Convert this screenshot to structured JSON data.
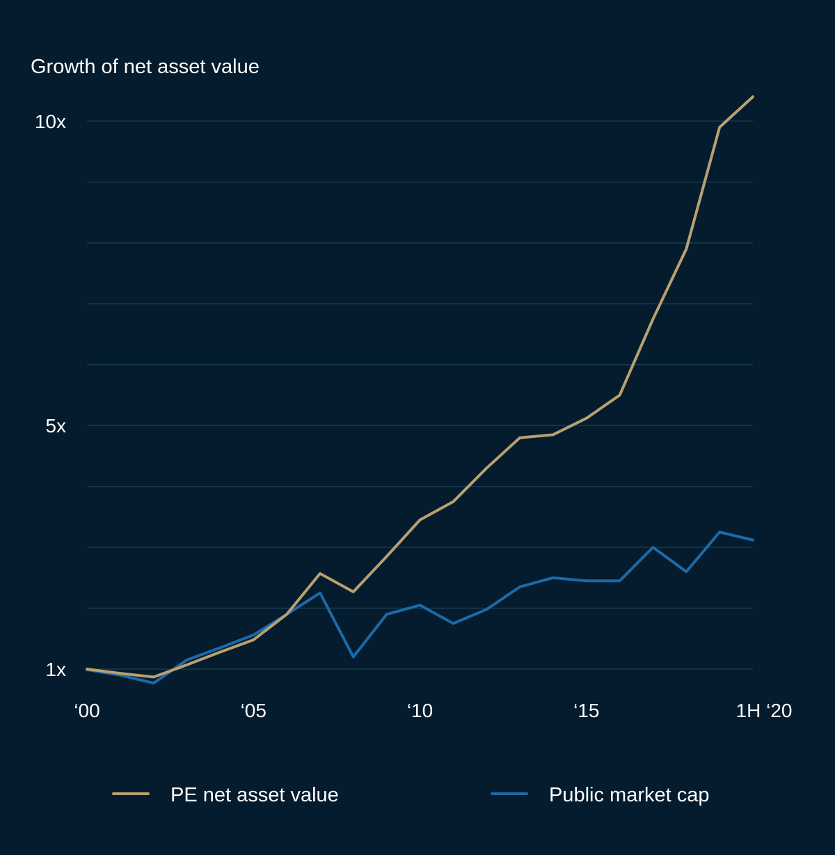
{
  "chart_data": {
    "type": "line",
    "ylabel": "Growth of net asset value",
    "x": [
      2000,
      2001,
      2002,
      2003,
      2004,
      2005,
      2006,
      2007,
      2008,
      2009,
      2010,
      2011,
      2012,
      2013,
      2014,
      2015,
      2016,
      2017,
      2018,
      2019,
      2020
    ],
    "x_ticks": [
      {
        "value": 2000,
        "label": "‘00"
      },
      {
        "value": 2005,
        "label": "‘05"
      },
      {
        "value": 2010,
        "label": "‘10"
      },
      {
        "value": 2015,
        "label": "‘15"
      },
      {
        "value": 2020,
        "label": "1H ‘20"
      }
    ],
    "y_ticks": [
      {
        "value": 1,
        "label": "1x"
      },
      {
        "value": 5,
        "label": "5x"
      },
      {
        "value": 10,
        "label": "10x"
      }
    ],
    "ylim": [
      1,
      10
    ],
    "grid_values": [
      1,
      2,
      3,
      4,
      5,
      6,
      7,
      8,
      9,
      10
    ],
    "grid": true,
    "legend_position": "bottom",
    "series": [
      {
        "name": "PE net asset value",
        "color": "#b9a070",
        "values": [
          1.0,
          0.93,
          0.87,
          1.07,
          1.28,
          1.48,
          1.9,
          2.57,
          2.27,
          2.85,
          3.45,
          3.75,
          4.3,
          4.8,
          4.85,
          5.12,
          5.5,
          6.75,
          7.9,
          9.9,
          10.4
        ]
      },
      {
        "name": "Public market cap",
        "color": "#1c6aa8",
        "values": [
          0.99,
          0.9,
          0.77,
          1.15,
          1.35,
          1.56,
          1.9,
          2.25,
          1.2,
          1.9,
          2.05,
          1.75,
          1.98,
          2.35,
          2.5,
          2.45,
          2.45,
          3.0,
          2.6,
          3.25,
          3.12
        ]
      }
    ]
  }
}
